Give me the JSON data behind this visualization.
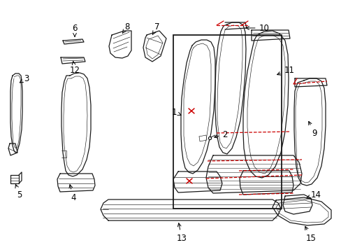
{
  "background_color": "#ffffff",
  "line_color": "#1a1a1a",
  "red_color": "#cc0000",
  "box_color": "#1a1a1a",
  "label_fontsize": 8.5,
  "arrow_lw": 0.7,
  "part_lw": 0.9,
  "thin_lw": 0.45,
  "fig_w": 4.89,
  "fig_h": 3.6,
  "dpi": 100
}
